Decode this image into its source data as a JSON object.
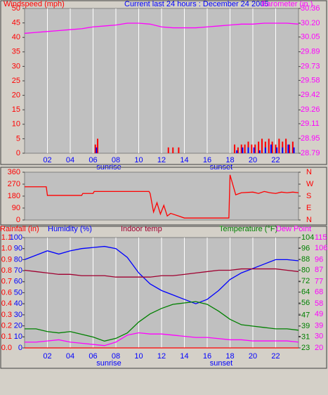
{
  "chart_data": [
    {
      "type": "combo",
      "title": "Current last 24 hours : December 24 2005",
      "ylabel": "Windspeed (mph)",
      "ycolor": "#ff0000",
      "ylim": [
        0,
        50
      ],
      "yticks": [
        0,
        5,
        10,
        15,
        20,
        25,
        30,
        35,
        40,
        45,
        50
      ],
      "y2label": "Barometer (in.)",
      "y2color": "#ff00ff",
      "y2lim": [
        28.79,
        30.36
      ],
      "y2ticks": [
        28.79,
        28.95,
        29.11,
        29.26,
        29.42,
        29.58,
        29.73,
        29.89,
        30.05,
        {
          "value": 30.2,
          "label": "30.20"
        },
        30.36
      ],
      "xlim": [
        0,
        24
      ],
      "xticks": [
        {
          "value": 2,
          "label": "02"
        },
        {
          "value": 4,
          "label": "04"
        },
        {
          "value": 6,
          "label": "06"
        },
        {
          "value": 8,
          "label": "08"
        },
        {
          "value": 10,
          "label": "10"
        },
        {
          "value": 12,
          "label": "12"
        },
        {
          "value": 14,
          "label": "14"
        },
        {
          "value": 16,
          "label": "16"
        },
        {
          "value": 18,
          "label": "18"
        },
        {
          "value": 20,
          "label": "20"
        },
        {
          "value": 22,
          "label": "22"
        }
      ],
      "annotations": [
        "sunrise",
        "sunset"
      ],
      "grid": true,
      "series": [
        {
          "type": "bar",
          "color": "#ff0000",
          "x": [
            6.2,
            6.4,
            12.6,
            13.0,
            13.5,
            18.4,
            18.7,
            19.0,
            19.3,
            19.6,
            19.9,
            20.2,
            20.5,
            20.8,
            21.1,
            21.4,
            21.7,
            22.0,
            22.3,
            22.6,
            22.9,
            23.2,
            23.5
          ],
          "values": [
            3,
            5,
            2,
            2,
            2,
            3,
            2,
            3,
            3,
            4,
            3,
            3,
            4,
            5,
            4,
            5,
            4,
            3,
            5,
            4,
            5,
            3,
            4
          ]
        },
        {
          "type": "bar",
          "color": "#0000ff",
          "x": [
            6.3,
            18.6,
            19.1,
            19.6,
            20.1,
            20.6,
            21.1,
            21.6,
            22.1,
            22.6,
            23.1,
            23.6
          ],
          "values": [
            2,
            1,
            2,
            2,
            2,
            1,
            2,
            3,
            2,
            2,
            3,
            2
          ]
        },
        {
          "type": "line",
          "axis": "y2",
          "color": "#ff00ff",
          "x": [
            0,
            1,
            2,
            3,
            4,
            5,
            6,
            7,
            8,
            9,
            10,
            11,
            12,
            13,
            14,
            15,
            16,
            17,
            18,
            19,
            20,
            21,
            22,
            23,
            24
          ],
          "values": [
            30.09,
            30.1,
            30.11,
            30.12,
            30.13,
            30.14,
            30.16,
            30.17,
            30.18,
            30.2,
            30.2,
            30.19,
            30.16,
            30.15,
            30.15,
            30.15,
            30.16,
            30.17,
            30.18,
            30.19,
            30.19,
            30.2,
            30.2,
            30.2,
            30.19
          ]
        }
      ]
    },
    {
      "type": "line",
      "ycolor": "#ff0000",
      "ylim": [
        0,
        360
      ],
      "yticks": [
        0,
        90,
        180,
        270,
        360
      ],
      "y2color": "#ff0000",
      "y2lim": [
        0,
        360
      ],
      "y2ticks": [
        {
          "value": 0,
          "label": "N"
        },
        {
          "value": 90,
          "label": "E"
        },
        {
          "value": 180,
          "label": "S"
        },
        {
          "value": 270,
          "label": "W"
        },
        {
          "value": 360,
          "label": "N"
        }
      ],
      "xlim": [
        0,
        24
      ],
      "series": [
        {
          "type": "line",
          "color": "#ff0000",
          "x": [
            0,
            1.9,
            2,
            5,
            5.1,
            6,
            6.1,
            10.9,
            11,
            11.3,
            11.6,
            11.9,
            12.2,
            12.5,
            12.8,
            13.5,
            14,
            17.9,
            18,
            18.3,
            18.5,
            19,
            20,
            20.5,
            21,
            21.5,
            22,
            22.5,
            23,
            23.5,
            24
          ],
          "values": [
            250,
            250,
            185,
            185,
            200,
            200,
            215,
            215,
            200,
            60,
            130,
            45,
            110,
            30,
            50,
            30,
            15,
            15,
            340,
            250,
            190,
            205,
            210,
            200,
            215,
            205,
            200,
            210,
            205,
            210,
            205
          ]
        }
      ]
    },
    {
      "type": "line",
      "ycolor": "#0000ff",
      "ylim": [
        0,
        100
      ],
      "yticks": [
        0,
        10,
        20,
        30,
        40,
        50,
        60,
        70,
        80,
        90,
        100
      ],
      "y2color": "#008000",
      "y2lim": [
        23,
        104
      ],
      "y2ticks": [
        23,
        31,
        39,
        47,
        56,
        64,
        72,
        80,
        88,
        96,
        104
      ],
      "y3color": "#ff0000",
      "y3lim": [
        0,
        1.1
      ],
      "y3ticks": [
        {
          "value": 0,
          "label": "0.0"
        },
        {
          "value": 0.11,
          "label": "0.1"
        },
        {
          "value": 0.22,
          "label": "0.2"
        },
        {
          "value": 0.33,
          "label": "0.3"
        },
        {
          "value": 0.44,
          "label": "0.4"
        },
        {
          "value": 0.55,
          "label": "0.6"
        },
        {
          "value": 0.66,
          "label": "0.7"
        },
        {
          "value": 0.77,
          "label": "0.8"
        },
        {
          "value": 0.88,
          "label": "0.9"
        },
        {
          "value": 0.99,
          "label": "1.0"
        },
        1.1
      ],
      "y4color": "#ff00ff",
      "y4lim": [
        20,
        115
      ],
      "y4ticks": [
        20,
        30,
        39,
        49,
        58,
        68,
        77,
        87,
        96,
        106,
        115
      ],
      "xlim": [
        0,
        24
      ],
      "xticks": [
        {
          "value": 2,
          "label": "02"
        },
        {
          "value": 4,
          "label": "04"
        },
        {
          "value": 6,
          "label": "06"
        },
        {
          "value": 8,
          "label": "08"
        },
        {
          "value": 10,
          "label": "10"
        },
        {
          "value": 12,
          "label": "12"
        },
        {
          "value": 14,
          "label": "14"
        },
        {
          "value": 16,
          "label": "16"
        },
        {
          "value": 18,
          "label": "18"
        },
        {
          "value": 20,
          "label": "20"
        },
        {
          "value": 22,
          "label": "22"
        }
      ],
      "annotations": [
        "sunrise",
        "sunset"
      ],
      "grid": true,
      "x": [
        0,
        1,
        2,
        3,
        4,
        5,
        6,
        7,
        8,
        9,
        10,
        11,
        12,
        13,
        14,
        15,
        16,
        17,
        18,
        19,
        20,
        21,
        22,
        23,
        24
      ],
      "series": [
        {
          "name": "Rainfall (in)",
          "color": "#ff0000",
          "axis": "y3",
          "values": [
            0,
            0,
            0,
            0,
            0,
            0,
            0,
            0,
            0,
            0,
            0,
            0,
            0,
            0,
            0,
            0,
            0,
            0,
            0,
            0,
            0,
            0,
            0,
            0,
            0
          ]
        },
        {
          "name": "Humidity (%)",
          "color": "#0000ff",
          "axis": "y",
          "values": [
            80,
            84,
            88,
            85,
            88,
            90,
            91,
            92,
            90,
            82,
            68,
            58,
            52,
            48,
            44,
            40,
            44,
            52,
            62,
            68,
            72,
            76,
            80,
            80,
            79
          ]
        },
        {
          "name": "Indoor temp",
          "color": "#a00030",
          "axis": "y2",
          "values": [
            80,
            79,
            78,
            77,
            77,
            76,
            76,
            76,
            75,
            75,
            75,
            75,
            76,
            76,
            77,
            78,
            79,
            80,
            80,
            81,
            81,
            81,
            81,
            80,
            79
          ]
        },
        {
          "name": "Temperature (°F)",
          "color": "#008000",
          "axis": "y2",
          "values": [
            37,
            37,
            35,
            34,
            35,
            33,
            31,
            28,
            30,
            34,
            42,
            48,
            52,
            55,
            56,
            57,
            55,
            50,
            44,
            40,
            39,
            38,
            37,
            37,
            36
          ]
        },
        {
          "name": "Dew Point",
          "color": "#ff00ff",
          "axis": "y4",
          "values": [
            25,
            25,
            26,
            27,
            25,
            24,
            23,
            22,
            25,
            31,
            33,
            32,
            32,
            31,
            30,
            29,
            29,
            28,
            27,
            27,
            26,
            26,
            26,
            26,
            25
          ]
        }
      ]
    }
  ]
}
